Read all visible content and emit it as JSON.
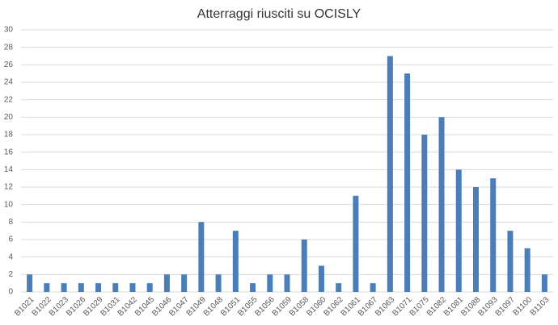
{
  "chart_data": {
    "type": "bar",
    "title": "Atterraggi riusciti su OCISLY",
    "categories": [
      "B1021",
      "B1022",
      "B1023",
      "B1026",
      "B1029",
      "B1031",
      "B1042",
      "B1045",
      "B1046",
      "B1047",
      "B1049",
      "B1048",
      "B1051",
      "B1055",
      "B1056",
      "B1059",
      "B1058",
      "B1060",
      "B1062",
      "B1061",
      "B1067",
      "B1063",
      "B1071",
      "B1075",
      "B1082",
      "B1081",
      "B1088",
      "B1093",
      "B1097",
      "B1100",
      "B1103"
    ],
    "values": [
      2,
      1,
      1,
      1,
      1,
      1,
      1,
      1,
      2,
      2,
      8,
      2,
      7,
      1,
      2,
      2,
      6,
      3,
      1,
      11,
      1,
      27,
      25,
      18,
      20,
      14,
      12,
      13,
      7,
      5,
      2
    ],
    "color": "#4a7ebb",
    "ylim": [
      0,
      30
    ],
    "yticks": [
      0,
      2,
      4,
      6,
      8,
      10,
      12,
      14,
      16,
      18,
      20,
      22,
      24,
      26,
      28,
      30
    ],
    "grid": true
  }
}
